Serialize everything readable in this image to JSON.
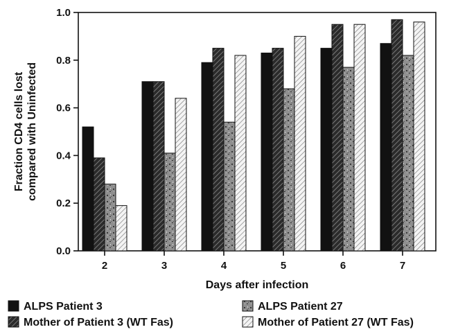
{
  "chart_data": {
    "type": "bar",
    "xlabel": "Days after infection",
    "ylabel_lines": [
      "Fraction CD4 cells lost",
      "compared with Uninfected"
    ],
    "ylim": [
      0,
      1.0
    ],
    "yticks": [
      "0.0",
      "0.2",
      "0.4",
      "0.6",
      "0.8",
      "1.0"
    ],
    "categories": [
      "2",
      "3",
      "4",
      "5",
      "6",
      "7"
    ],
    "series": [
      {
        "name": "ALPS Patient 3",
        "values": [
          0.52,
          0.71,
          0.79,
          0.83,
          0.85,
          0.87
        ],
        "fill": "black"
      },
      {
        "name": "Mother of Patient 3 (WT Fas)",
        "values": [
          0.39,
          0.71,
          0.85,
          0.85,
          0.95,
          0.97
        ],
        "fill": "dark-hatch"
      },
      {
        "name": "ALPS Patient 27",
        "values": [
          0.28,
          0.41,
          0.54,
          0.68,
          0.77,
          0.82
        ],
        "fill": "gray-speckle"
      },
      {
        "name": "Mother of Patient 27 (WT Fas)",
        "values": [
          0.19,
          0.64,
          0.82,
          0.9,
          0.95,
          0.96
        ],
        "fill": "light-hatch"
      }
    ],
    "legend_placement": "bottom",
    "grid": false,
    "colors": {
      "black": "#111111",
      "dark": "#3a3a3a",
      "gray": "#8a8a8a",
      "light": "#f0f0f0"
    }
  }
}
